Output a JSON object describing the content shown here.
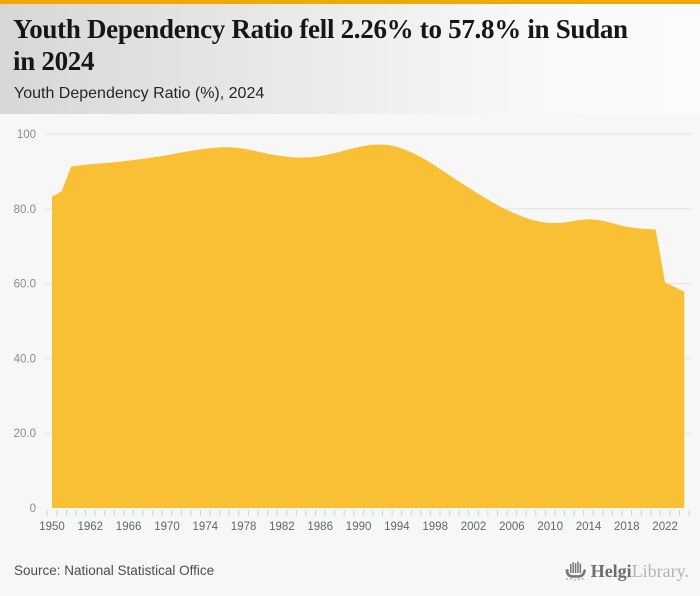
{
  "header": {
    "title": "Youth Dependency Ratio fell 2.26% to 57.8% in Sudan in 2024",
    "title_line1": "Youth Dependency Ratio fell 2.26% to 57.8% in Sudan",
    "title_line2": "in 2024",
    "subtitle": "Youth Dependency Ratio (%), 2024"
  },
  "chart_data": {
    "type": "area",
    "title": "Youth Dependency Ratio (%), 2024",
    "xlabel": "",
    "ylabel": "",
    "ylim": [
      0,
      100
    ],
    "grid": true,
    "legend": "none",
    "x": [
      1950,
      1955,
      1960,
      1961,
      1962,
      1963,
      1964,
      1965,
      1966,
      1967,
      1968,
      1969,
      1970,
      1971,
      1972,
      1973,
      1974,
      1975,
      1976,
      1977,
      1978,
      1979,
      1980,
      1981,
      1982,
      1983,
      1984,
      1985,
      1986,
      1987,
      1988,
      1989,
      1990,
      1991,
      1992,
      1993,
      1994,
      1995,
      1996,
      1997,
      1998,
      1999,
      2000,
      2001,
      2002,
      2003,
      2004,
      2005,
      2006,
      2007,
      2008,
      2009,
      2010,
      2011,
      2012,
      2013,
      2014,
      2015,
      2016,
      2017,
      2018,
      2019,
      2020,
      2021,
      2022,
      2023,
      2024
    ],
    "values": [
      83.2,
      84.7,
      91.3,
      91.6,
      91.9,
      92.1,
      92.3,
      92.6,
      92.9,
      93.2,
      93.5,
      93.9,
      94.3,
      94.8,
      95.3,
      95.7,
      96.1,
      96.3,
      96.5,
      96.4,
      96.1,
      95.6,
      95.0,
      94.5,
      94.1,
      93.8,
      93.7,
      93.8,
      94.1,
      94.6,
      95.2,
      95.9,
      96.5,
      97.0,
      97.2,
      97.1,
      96.6,
      95.7,
      94.5,
      93.1,
      91.5,
      89.8,
      88.1,
      86.4,
      84.8,
      83.2,
      81.7,
      80.3,
      79.1,
      78.0,
      77.1,
      76.5,
      76.2,
      76.2,
      76.5,
      77.0,
      77.2,
      77.0,
      76.5,
      75.8,
      75.2,
      74.8,
      74.6,
      74.5,
      60.3,
      59.1,
      57.8
    ],
    "y_ticks": [
      {
        "value": 0,
        "label": "0"
      },
      {
        "value": 20,
        "label": "20.0"
      },
      {
        "value": 40,
        "label": "40.0"
      },
      {
        "value": 60,
        "label": "60.0"
      },
      {
        "value": 80,
        "label": "80.0"
      },
      {
        "value": 100,
        "label": "100"
      }
    ],
    "x_label_years": [
      1950,
      1962,
      1966,
      1970,
      1974,
      1978,
      1982,
      1986,
      1990,
      1994,
      1998,
      2002,
      2006,
      2010,
      2014,
      2018,
      2022
    ],
    "colors": {
      "area": "#f9bf35",
      "grid": "#e3e3e3",
      "tick": "#c7d3e6",
      "y_label": "#8c8c8c",
      "x_label": "#666666",
      "background": "#f7f7f7",
      "accent_bar": "#f0a802"
    }
  },
  "footer": {
    "source": "Source: National Statistical Office",
    "logo": {
      "brand_bold": "Helgi",
      "brand_light": "Library."
    }
  }
}
